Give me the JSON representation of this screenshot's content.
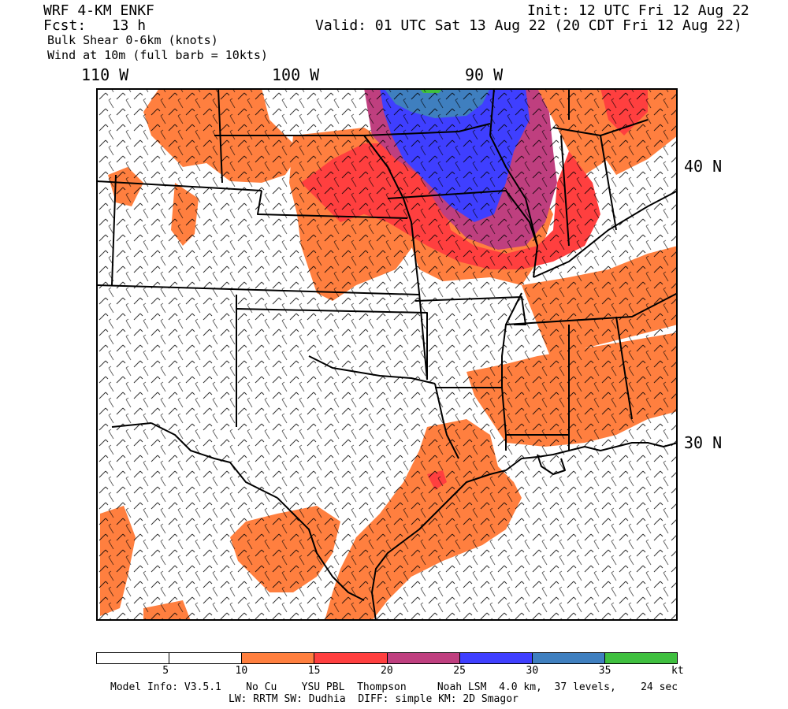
{
  "header": {
    "model": "WRF 4-KM ENKF",
    "fcst": "Fcst:   13 h",
    "init": "Init: 12 UTC Fri 12 Aug 22",
    "valid": "Valid: 01 UTC Sat 13 Aug 22 (20 CDT Fri 12 Aug 22)",
    "field1": "Bulk Shear 0-6km (knots)",
    "field2": "Wind at 10m (full barb = 10kts)"
  },
  "lon_labels": [
    "110 W",
    "100 W",
    "90 W"
  ],
  "lat_labels": [
    "40 N",
    "30 N"
  ],
  "colorbar": {
    "colors": [
      "#ffffff",
      "#ffffff",
      "#ff7f3f",
      "#ff3f3f",
      "#bf3f7f",
      "#3f3fff",
      "#3f7fbf",
      "#3fbf3f"
    ],
    "ticks": [
      "5",
      "10",
      "15",
      "20",
      "25",
      "30",
      "35",
      "kt"
    ]
  },
  "footer": {
    "line1": "Model Info: V3.5.1    No Cu    YSU PBL  Thompson     Noah LSM  4.0 km,  37 levels,    24 sec",
    "line2": "LW: RRTM SW: Dudhia  DIFF: simple KM: 2D Smagor"
  },
  "map_colors": {
    "orange": "#ff7f3f",
    "red": "#ff3f3f",
    "purple": "#bf3f7f",
    "blue": "#3f3fff",
    "steel": "#3f7fbf",
    "green": "#3fbf3f"
  }
}
